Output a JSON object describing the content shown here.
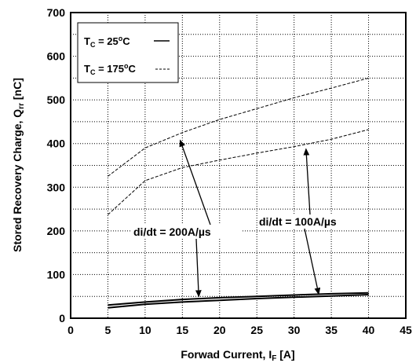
{
  "chart_data": {
    "type": "line",
    "xlabel": "Forwad Current, I",
    "xlabel_sub": "F",
    "xlabel_unit": " [A]",
    "ylabel": "Stored Recovery Charge, Q",
    "ylabel_sub": "rr",
    "ylabel_unit": " [nC]",
    "xlim": [
      0,
      45
    ],
    "ylim": [
      0,
      700
    ],
    "xticks": [
      0,
      5,
      10,
      15,
      20,
      25,
      30,
      35,
      40,
      45
    ],
    "yticks": [
      0,
      100,
      200,
      300,
      400,
      500,
      600,
      700
    ],
    "grid": true,
    "legend": {
      "placement": "top-left",
      "entries": [
        {
          "prefix": "T",
          "sub": "C",
          "value": " = 25",
          "sup": "o",
          "unit": "C",
          "style": "solid"
        },
        {
          "prefix": "T",
          "sub": "C",
          "value": " = 175",
          "sup": "o",
          "unit": "C",
          "style": "dashed"
        }
      ]
    },
    "annotations": [
      {
        "text": "di/dt = 200A/µs"
      },
      {
        "text": "di/dt = 100A/µs"
      }
    ],
    "series": [
      {
        "temperature": "175C",
        "di_dt": "200A/us",
        "style": "dashed",
        "x": [
          5,
          10,
          15,
          20,
          25,
          30,
          35,
          40
        ],
        "y": [
          325,
          390,
          425,
          455,
          480,
          505,
          527,
          550
        ]
      },
      {
        "temperature": "175C",
        "di_dt": "100A/us",
        "style": "dashed",
        "x": [
          5,
          10,
          15,
          20,
          25,
          30,
          35,
          40
        ],
        "y": [
          237,
          315,
          345,
          362,
          378,
          393,
          410,
          432
        ]
      },
      {
        "temperature": "25C",
        "di_dt": "200A/us",
        "style": "solid",
        "x": [
          5,
          10,
          15,
          20,
          25,
          30,
          35,
          40
        ],
        "y": [
          30,
          37,
          43,
          47,
          50,
          53,
          56,
          58
        ]
      },
      {
        "temperature": "25C",
        "di_dt": "100A/us",
        "style": "solid",
        "x": [
          5,
          10,
          15,
          20,
          25,
          30,
          35,
          40
        ],
        "y": [
          24,
          32,
          37,
          41,
          45,
          48,
          51,
          54
        ]
      }
    ]
  }
}
